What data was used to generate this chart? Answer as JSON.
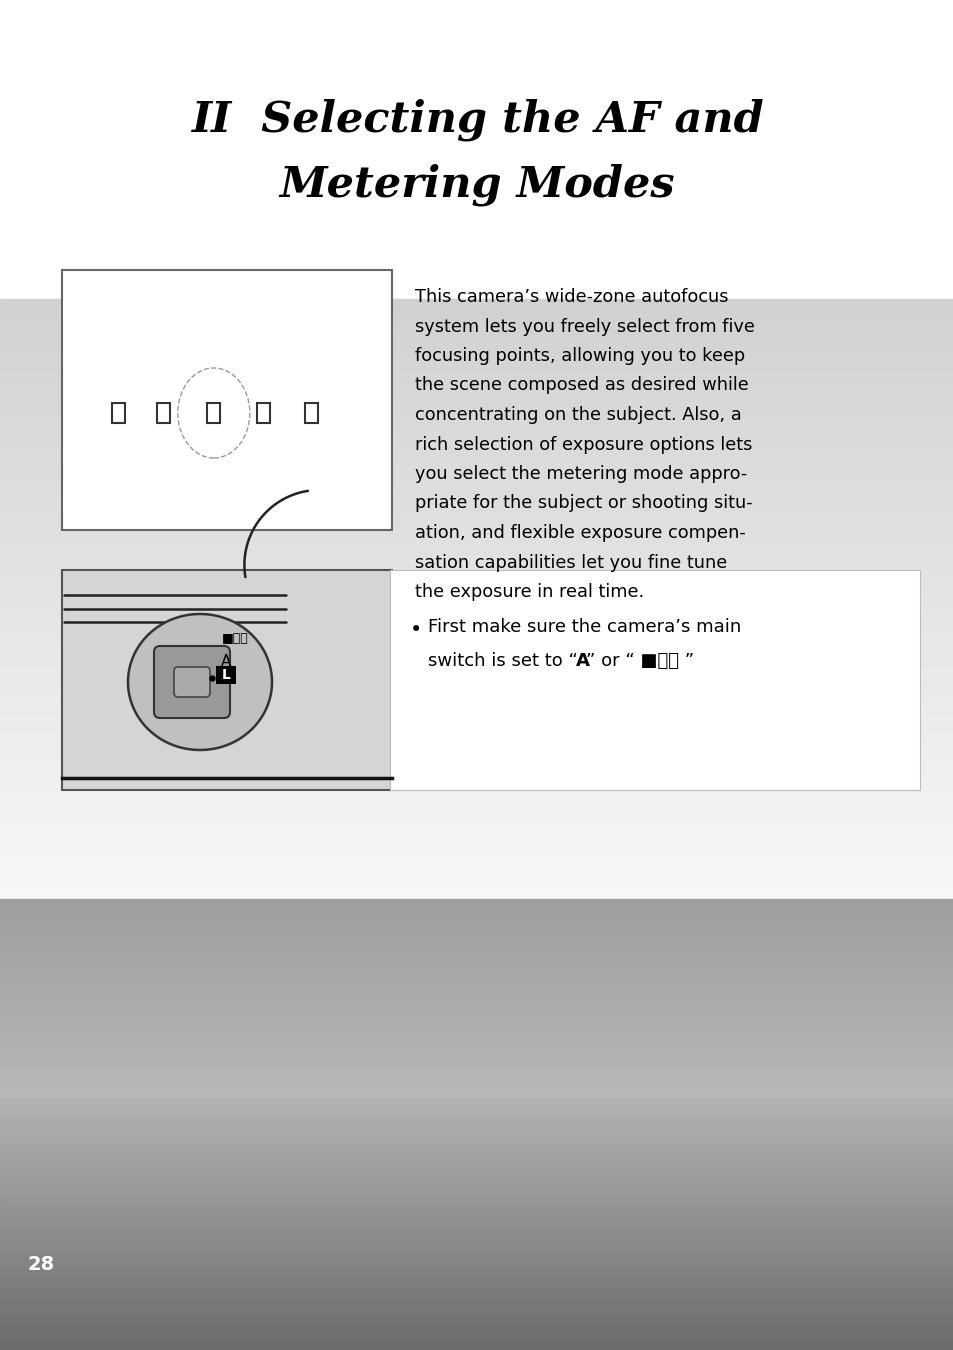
{
  "title_line1": "II  Selecting the AF and",
  "title_line2": "Metering Modes",
  "paragraph_lines": [
    "This camera’s wide-zone autofocus",
    "system lets you freely select from five",
    "focusing points, allowing you to keep",
    "the scene composed as desired while",
    "concentrating on the subject. Also, a",
    "rich selection of exposure options lets",
    "you select the metering mode appro-",
    "priate for the subject or shooting situ-",
    "ation, and flexible exposure compen-",
    "sation capabilities let you fine tune",
    "the exposure in real time."
  ],
  "bullet_line1": "First make sure the camera’s main",
  "bullet_line2": "switch is set to “A” or “ ■⧖⧖ ”",
  "bullet_line2_bold_word": "A",
  "page_number": "28"
}
